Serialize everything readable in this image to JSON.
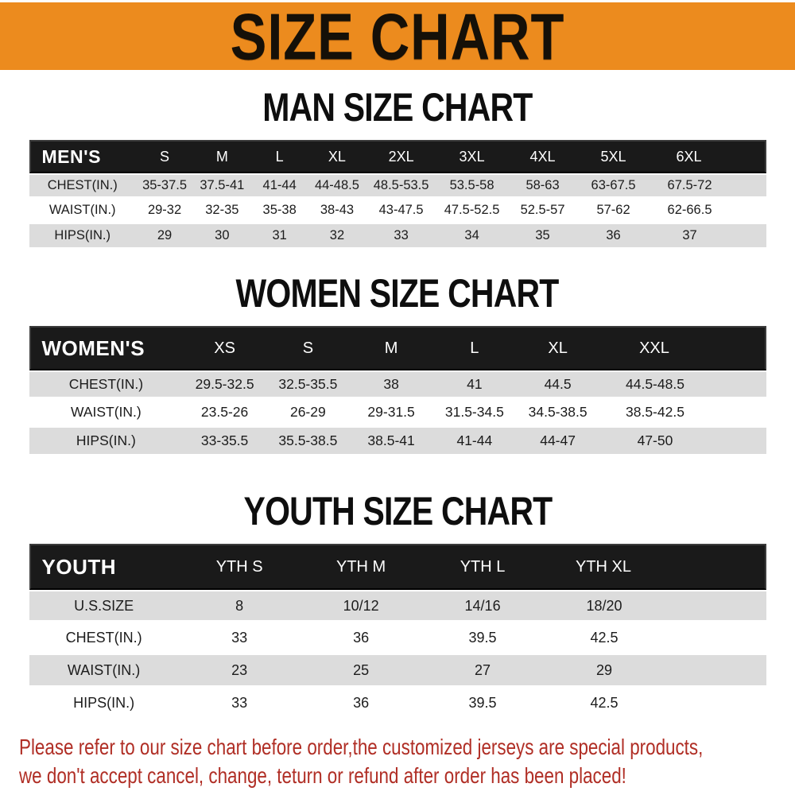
{
  "banner": {
    "title": "SIZE CHART",
    "bg_color": "#EC8B1E",
    "text_color": "#151008"
  },
  "sections": {
    "men": {
      "title": "MAN SIZE CHART",
      "table": {
        "header": [
          "MEN'S",
          "S",
          "M",
          "L",
          "XL",
          "2XL",
          "3XL",
          "4XL",
          "5XL",
          "6XL"
        ],
        "rows": [
          [
            "CHEST(IN.)",
            "35-37.5",
            "37.5-41",
            "41-44",
            "44-48.5",
            "48.5-53.5",
            "53.5-58",
            "58-63",
            "63-67.5",
            "67.5-72"
          ],
          [
            "WAIST(IN.)",
            "29-32",
            "32-35",
            "35-38",
            "38-43",
            "43-47.5",
            "47.5-52.5",
            "52.5-57",
            "57-62",
            "62-66.5"
          ],
          [
            "HIPS(IN.)",
            "29",
            "30",
            "31",
            "32",
            "33",
            "34",
            "35",
            "36",
            "37"
          ]
        ]
      }
    },
    "women": {
      "title": "WOMEN SIZE CHART",
      "table": {
        "header": [
          "WOMEN'S",
          "XS",
          "S",
          "M",
          "L",
          "XL",
          "XXL"
        ],
        "rows": [
          [
            "CHEST(IN.)",
            "29.5-32.5",
            "32.5-35.5",
            "38",
            "41",
            "44.5",
            "44.5-48.5"
          ],
          [
            "WAIST(IN.)",
            "23.5-26",
            "26-29",
            "29-31.5",
            "31.5-34.5",
            "34.5-38.5",
            "38.5-42.5"
          ],
          [
            "HIPS(IN.)",
            "33-35.5",
            "35.5-38.5",
            "38.5-41",
            "41-44",
            "44-47",
            "47-50"
          ]
        ]
      }
    },
    "youth": {
      "title": "YOUTH SIZE CHART",
      "table": {
        "header": [
          "YOUTH",
          "YTH S",
          "YTH M",
          "YTH L",
          "YTH XL"
        ],
        "rows": [
          [
            "U.S.SIZE",
            "8",
            "10/12",
            "14/16",
            "18/20"
          ],
          [
            "CHEST(IN.)",
            "33",
            "36",
            "39.5",
            "42.5"
          ],
          [
            "WAIST(IN.)",
            "23",
            "25",
            "27",
            "29"
          ],
          [
            "HIPS(IN.)",
            "33",
            "36",
            "39.5",
            "42.5"
          ]
        ]
      }
    }
  },
  "footer": {
    "line1": "Please refer to our size chart before order,the customized jerseys are special products,",
    "line2": "we don't accept cancel, change, teturn or refund after order has been placed!",
    "text_color": "#B02E25"
  },
  "colors": {
    "banner_orange": "#EC8B1E",
    "header_bar_black": "#1A1A1A",
    "row_stripe_gray": "#DCDCDC",
    "row_white": "#FFFFFF",
    "title_black": "#0E0E0E",
    "footer_red": "#B02E25"
  }
}
